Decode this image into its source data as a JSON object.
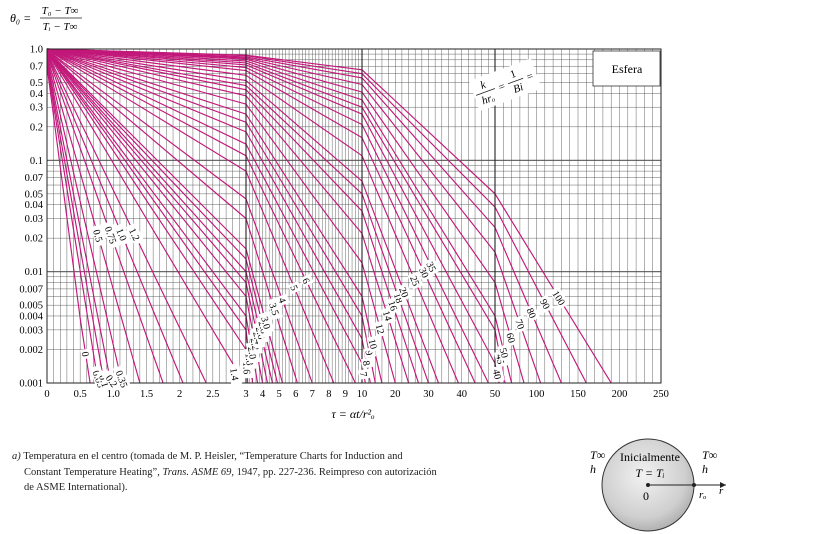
{
  "chart_data": {
    "type": "line",
    "title": "",
    "ylabel_num": "T₀ − T∞",
    "ylabel_den": "Tᵢ − T∞",
    "ylabel_prefix": "θ₀ =",
    "xlabel": "τ = αt/r²ₒ",
    "legend_box": "Esfera",
    "bi_label": {
      "k": "k",
      "hr": "hrₒ",
      "one": "1",
      "bi": "Bi"
    },
    "ylim": [
      0.001,
      1.0
    ],
    "y_scale": "log",
    "y_ticks": [
      "1.0",
      "0.7",
      "0.5",
      "0.4",
      "0.3",
      "0.2",
      "0.1",
      "0.07",
      "0.05",
      "0.04",
      "0.03",
      "0.02",
      "0.01",
      "0.007",
      "0.005",
      "0.004",
      "0.003",
      "0.002",
      "0.001"
    ],
    "x_scale": "piecewise",
    "x_ticks": [
      "0",
      "0.5",
      "1.0",
      "1.5",
      "2",
      "2.5",
      "3",
      "4",
      "5",
      "6",
      "7",
      "8",
      "9",
      "10",
      "20",
      "30",
      "40",
      "50",
      "100",
      "150",
      "200",
      "250"
    ],
    "x_segments": [
      {
        "from": 0,
        "to": 3,
        "grid_step": 0.1
      },
      {
        "from": 3,
        "to": 10,
        "grid_step": 0.2
      },
      {
        "from": 10,
        "to": 50,
        "grid_step": 2
      },
      {
        "from": 50,
        "to": 250,
        "grid_step": 10
      }
    ],
    "series": [
      {
        "name": "0",
        "points": [
          [
            0,
            0.7
          ],
          [
            0.5,
            0.0038
          ],
          [
            0.65,
            0.001
          ]
        ]
      },
      {
        "name": "0.05",
        "points": [
          [
            0,
            0.72
          ],
          [
            0.75,
            0.0012
          ],
          [
            0.8,
            0.001
          ]
        ]
      },
      {
        "name": "0.1",
        "points": [
          [
            0,
            0.76
          ],
          [
            0.85,
            0.0011
          ],
          [
            0.87,
            0.001
          ]
        ]
      },
      {
        "name": "0.2",
        "points": [
          [
            0,
            0.8
          ],
          [
            0.95,
            0.0011
          ],
          [
            1.0,
            0.001
          ]
        ]
      },
      {
        "name": "0.35",
        "points": [
          [
            0,
            0.84
          ],
          [
            1.1,
            0.0012
          ],
          [
            1.15,
            0.001
          ]
        ]
      },
      {
        "name": "0.5",
        "points": [
          [
            0,
            0.87
          ],
          [
            1.4,
            0.001
          ]
        ]
      },
      {
        "name": "0.75",
        "points": [
          [
            0,
            0.9
          ],
          [
            1.75,
            0.001
          ]
        ]
      },
      {
        "name": "1.0",
        "points": [
          [
            0,
            0.92
          ],
          [
            2.05,
            0.001
          ]
        ]
      },
      {
        "name": "1.2",
        "points": [
          [
            0,
            0.93
          ],
          [
            2.4,
            0.001
          ]
        ]
      },
      {
        "name": "1.4",
        "points": [
          [
            0,
            0.94
          ],
          [
            2.8,
            0.0015
          ],
          [
            2.85,
            0.001
          ]
        ]
      },
      {
        "name": "1.6",
        "points": [
          [
            0,
            0.95
          ],
          [
            3,
            0.002
          ],
          [
            3.1,
            0.001
          ]
        ]
      },
      {
        "name": "1.8",
        "points": [
          [
            0,
            0.955
          ],
          [
            3,
            0.003
          ],
          [
            3.4,
            0.001
          ]
        ]
      },
      {
        "name": "2.0",
        "points": [
          [
            0,
            0.96
          ],
          [
            3,
            0.004
          ],
          [
            3.7,
            0.001
          ]
        ]
      },
      {
        "name": "2.2",
        "points": [
          [
            0,
            0.965
          ],
          [
            3,
            0.006
          ],
          [
            4.0,
            0.001
          ]
        ]
      },
      {
        "name": "2.4",
        "points": [
          [
            0,
            0.97
          ],
          [
            3,
            0.008
          ],
          [
            4.3,
            0.001
          ]
        ]
      },
      {
        "name": "2.6",
        "points": [
          [
            0,
            0.972
          ],
          [
            3,
            0.01
          ],
          [
            4.6,
            0.001
          ]
        ]
      },
      {
        "name": "2.8",
        "points": [
          [
            0,
            0.975
          ],
          [
            3,
            0.013
          ],
          [
            4.9,
            0.001
          ]
        ]
      },
      {
        "name": "3.0",
        "points": [
          [
            0,
            0.978
          ],
          [
            3,
            0.016
          ],
          [
            5.2,
            0.001
          ]
        ]
      },
      {
        "name": "3.5",
        "points": [
          [
            0,
            0.98
          ],
          [
            3,
            0.03
          ],
          [
            6.1,
            0.001
          ]
        ]
      },
      {
        "name": "4",
        "points": [
          [
            0,
            0.982
          ],
          [
            3,
            0.045
          ],
          [
            7.0,
            0.001
          ]
        ]
      },
      {
        "name": "5",
        "points": [
          [
            0,
            0.985
          ],
          [
            3,
            0.08
          ],
          [
            8.3,
            0.001
          ]
        ]
      },
      {
        "name": "6",
        "points": [
          [
            0,
            0.988
          ],
          [
            3,
            0.11
          ],
          [
            9.6,
            0.001
          ]
        ]
      },
      {
        "name": "7",
        "points": [
          [
            0,
            0.99
          ],
          [
            3,
            0.14
          ],
          [
            10,
            0.0015
          ],
          [
            11,
            0.001
          ]
        ]
      },
      {
        "name": "8",
        "points": [
          [
            0,
            0.991
          ],
          [
            3,
            0.18
          ],
          [
            10,
            0.0025
          ],
          [
            12.5,
            0.001
          ]
        ]
      },
      {
        "name": "9",
        "points": [
          [
            0,
            0.992
          ],
          [
            3,
            0.22
          ],
          [
            10,
            0.004
          ],
          [
            14,
            0.001
          ]
        ]
      },
      {
        "name": "10",
        "points": [
          [
            0,
            0.993
          ],
          [
            3,
            0.26
          ],
          [
            10,
            0.006
          ],
          [
            16,
            0.001
          ]
        ]
      },
      {
        "name": "12",
        "points": [
          [
            0,
            0.994
          ],
          [
            3,
            0.32
          ],
          [
            10,
            0.012
          ],
          [
            20,
            0.001
          ]
        ]
      },
      {
        "name": "14",
        "points": [
          [
            0,
            0.995
          ],
          [
            3,
            0.38
          ],
          [
            10,
            0.022
          ],
          [
            24,
            0.001
          ]
        ]
      },
      {
        "name": "16",
        "points": [
          [
            0,
            0.996
          ],
          [
            3,
            0.43
          ],
          [
            10,
            0.035
          ],
          [
            27,
            0.001
          ]
        ]
      },
      {
        "name": "18",
        "points": [
          [
            0,
            0.996
          ],
          [
            3,
            0.47
          ],
          [
            10,
            0.05
          ],
          [
            30,
            0.001
          ]
        ]
      },
      {
        "name": "20",
        "points": [
          [
            0,
            0.997
          ],
          [
            3,
            0.52
          ],
          [
            10,
            0.065
          ],
          [
            33,
            0.001
          ]
        ]
      },
      {
        "name": "25",
        "points": [
          [
            0,
            0.997
          ],
          [
            3,
            0.58
          ],
          [
            10,
            0.11
          ],
          [
            39,
            0.001
          ]
        ]
      },
      {
        "name": "30",
        "points": [
          [
            0,
            0.998
          ],
          [
            3,
            0.64
          ],
          [
            10,
            0.16
          ],
          [
            44,
            0.001
          ]
        ]
      },
      {
        "name": "35",
        "points": [
          [
            0,
            0.998
          ],
          [
            3,
            0.68
          ],
          [
            10,
            0.21
          ],
          [
            48,
            0.001
          ]
        ]
      },
      {
        "name": "40",
        "points": [
          [
            0,
            0.998
          ],
          [
            3,
            0.72
          ],
          [
            10,
            0.26
          ],
          [
            50,
            0.0015
          ],
          [
            55,
            0.001
          ]
        ]
      },
      {
        "name": "45",
        "points": [
          [
            0,
            0.998
          ],
          [
            3,
            0.75
          ],
          [
            10,
            0.3
          ],
          [
            50,
            0.003
          ],
          [
            62,
            0.001
          ]
        ]
      },
      {
        "name": "50",
        "points": [
          [
            0,
            0.999
          ],
          [
            3,
            0.78
          ],
          [
            10,
            0.35
          ],
          [
            50,
            0.004
          ],
          [
            70,
            0.001
          ]
        ]
      },
      {
        "name": "60",
        "points": [
          [
            0,
            0.999
          ],
          [
            3,
            0.81
          ],
          [
            10,
            0.41
          ],
          [
            50,
            0.008
          ],
          [
            85,
            0.001
          ]
        ]
      },
      {
        "name": "70",
        "points": [
          [
            0,
            0.999
          ],
          [
            3,
            0.83
          ],
          [
            10,
            0.48
          ],
          [
            50,
            0.015
          ],
          [
            105,
            0.001
          ]
        ]
      },
      {
        "name": "80",
        "points": [
          [
            0,
            0.999
          ],
          [
            3,
            0.85
          ],
          [
            10,
            0.55
          ],
          [
            50,
            0.025
          ],
          [
            130,
            0.001
          ]
        ]
      },
      {
        "name": "90",
        "points": [
          [
            0,
            0.999
          ],
          [
            3,
            0.87
          ],
          [
            10,
            0.6
          ],
          [
            50,
            0.038
          ],
          [
            160,
            0.001
          ]
        ]
      },
      {
        "name": "100",
        "points": [
          [
            0,
            0.999
          ],
          [
            3,
            0.88
          ],
          [
            10,
            0.65
          ],
          [
            50,
            0.05
          ],
          [
            190,
            0.001
          ]
        ]
      }
    ],
    "grid": true
  },
  "caption": {
    "lead": "a)",
    "line1": "Temperatura en el centro (tomada de M. P. Heisler, “Temperature Charts for Induction and",
    "line2a": "Constant Temperature Heating”, ",
    "line2b": "Trans. ASME 69,",
    "line2c": " 1947, pp. 227-236. Reimpreso con autorización",
    "line3": "de ASME International)."
  },
  "diagram": {
    "t_inf_left": "T∞",
    "h_left": "h",
    "t_inf_right": "T∞",
    "h_right": "h",
    "initial": "Inicialmente",
    "t_eq": "T = Tᵢ",
    "zero": "0",
    "r0": "rₒ",
    "r": "r"
  }
}
